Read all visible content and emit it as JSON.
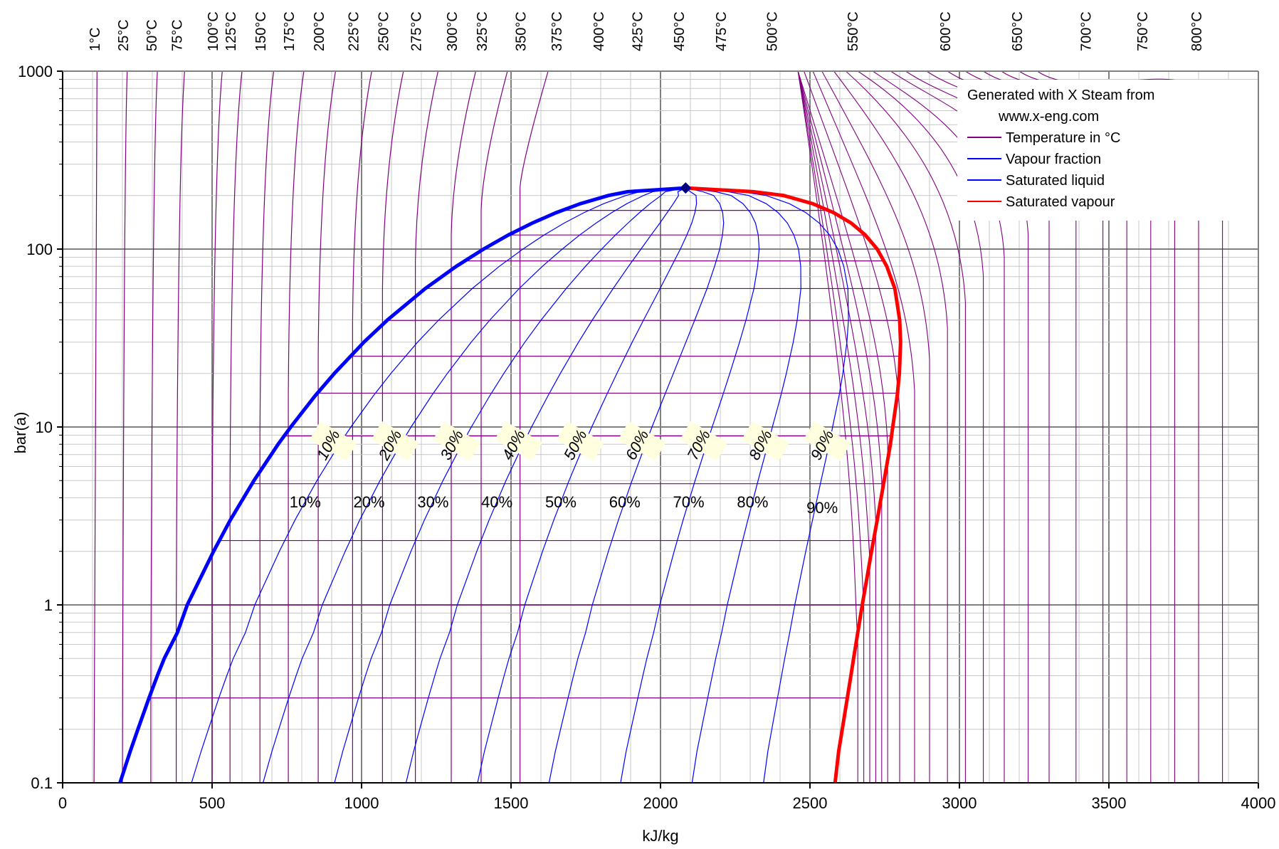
{
  "chart_data": {
    "type": "line",
    "title": "",
    "xlabel": "kJ/kg",
    "ylabel": "bar(a)",
    "x_scale": "linear",
    "y_scale": "log",
    "xlim": [
      0,
      4000
    ],
    "ylim": [
      0.1,
      1000
    ],
    "grid": true,
    "legend_position": "top-right",
    "x_ticks": [
      "0",
      "500",
      "1000",
      "1500",
      "2000",
      "2500",
      "3000",
      "3500",
      "4000"
    ],
    "y_ticks": [
      "0.1",
      "1",
      "10",
      "100",
      "1000"
    ],
    "top_axis_labels": [
      "1°C",
      "25°C",
      "50°C",
      "75°C",
      "100°C",
      "125°C",
      "150°C",
      "175°C",
      "200°C",
      "225°C",
      "250°C",
      "275°C",
      "300°C",
      "325°C",
      "350°C",
      "375°C",
      "400°C",
      "425°C",
      "450°C",
      "475°C",
      "500°C",
      "550°C",
      "600°C",
      "650°C",
      "700°C",
      "750°C",
      "800°C"
    ],
    "top_axis_enthalpy": [
      105,
      200,
      295,
      380,
      500,
      560,
      660,
      755,
      855,
      970,
      1070,
      1180,
      1300,
      1400,
      1530,
      1650,
      1790,
      1920,
      2060,
      2200,
      2370,
      2640,
      2950,
      3190,
      3420,
      3610,
      3790
    ],
    "critical_point": {
      "h": 2084,
      "p": 220.6
    },
    "saturated_liquid": [
      [
        192,
        0.1
      ],
      [
        226,
        0.15
      ],
      [
        252,
        0.2
      ],
      [
        289,
        0.3
      ],
      [
        317,
        0.4
      ],
      [
        340,
        0.5
      ],
      [
        384,
        0.7
      ],
      [
        417,
        1.0
      ],
      [
        505,
        2.0
      ],
      [
        561,
        3.0
      ],
      [
        640,
        5.0
      ],
      [
        721,
        8.0
      ],
      [
        763,
        10
      ],
      [
        845,
        15
      ],
      [
        909,
        20
      ],
      [
        1008,
        30
      ],
      [
        1087,
        40
      ],
      [
        1213,
        60
      ],
      [
        1317,
        80
      ],
      [
        1408,
        100
      ],
      [
        1491,
        120
      ],
      [
        1571,
        140
      ],
      [
        1650,
        160
      ],
      [
        1732,
        180
      ],
      [
        1826,
        200
      ],
      [
        1890,
        210
      ],
      [
        2084,
        220.6
      ]
    ],
    "saturated_vapour": [
      [
        2584,
        0.1
      ],
      [
        2596,
        0.15
      ],
      [
        2608,
        0.2
      ],
      [
        2625,
        0.3
      ],
      [
        2637,
        0.4
      ],
      [
        2646,
        0.5
      ],
      [
        2660,
        0.7
      ],
      [
        2675,
        1.0
      ],
      [
        2706,
        2.0
      ],
      [
        2725,
        3.0
      ],
      [
        2748,
        5.0
      ],
      [
        2769,
        8.0
      ],
      [
        2777,
        10
      ],
      [
        2792,
        15
      ],
      [
        2799,
        20
      ],
      [
        2803,
        30
      ],
      [
        2800,
        40
      ],
      [
        2784,
        60
      ],
      [
        2757,
        80
      ],
      [
        2725,
        100
      ],
      [
        2685,
        120
      ],
      [
        2638,
        140
      ],
      [
        2580,
        160
      ],
      [
        2509,
        180
      ],
      [
        2412,
        200
      ],
      [
        2310,
        210
      ],
      [
        2084,
        220.6
      ]
    ],
    "vapour_fraction_labels": [
      "10%",
      "20%",
      "30%",
      "40%",
      "50%",
      "60%",
      "70%",
      "80%",
      "90%"
    ],
    "vapour_fraction_values": [
      0.1,
      0.2,
      0.3,
      0.4,
      0.5,
      0.6,
      0.7,
      0.8,
      0.9
    ],
    "isotherm_pressures_bar": [
      0.1,
      0.3,
      1.0,
      2.3,
      4.8,
      8.9,
      15.5,
      25.0,
      39.7,
      60.0,
      85.8,
      120.0,
      165.0,
      220.6
    ],
    "series": [
      {
        "name": "Temperature in °C",
        "color": "#800080"
      },
      {
        "name": "Vapour fraction",
        "color": "#0000ff"
      },
      {
        "name": "Saturated liquid",
        "color": "#0000ff"
      },
      {
        "name": "Saturated vapour",
        "color": "#ff0000"
      }
    ]
  },
  "legend": {
    "generated": "Generated with X Steam from",
    "url": "www.x-eng.com",
    "url_color": "#0000ff",
    "items": [
      "Temperature in °C",
      "Vapour fraction",
      "Saturated liquid",
      "Saturated vapour"
    ]
  }
}
